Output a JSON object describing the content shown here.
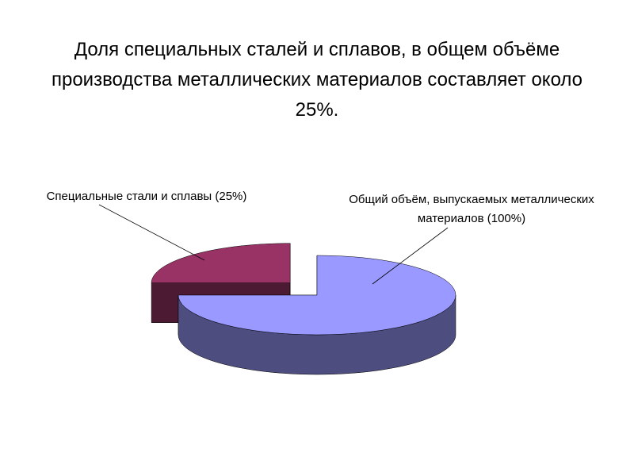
{
  "chart_data": {
    "type": "pie3d",
    "title": "Доля специальных сталей и сплавов, в общем объёме производства металлических материалов составляет около 25%.",
    "categories": [
      "Общий объём, выпускаемых металлических материалов (100%)",
      "Специальные стали и сплавы (25%)"
    ],
    "values": [
      75,
      25
    ],
    "colors": [
      "#9999ff",
      "#993366"
    ]
  }
}
